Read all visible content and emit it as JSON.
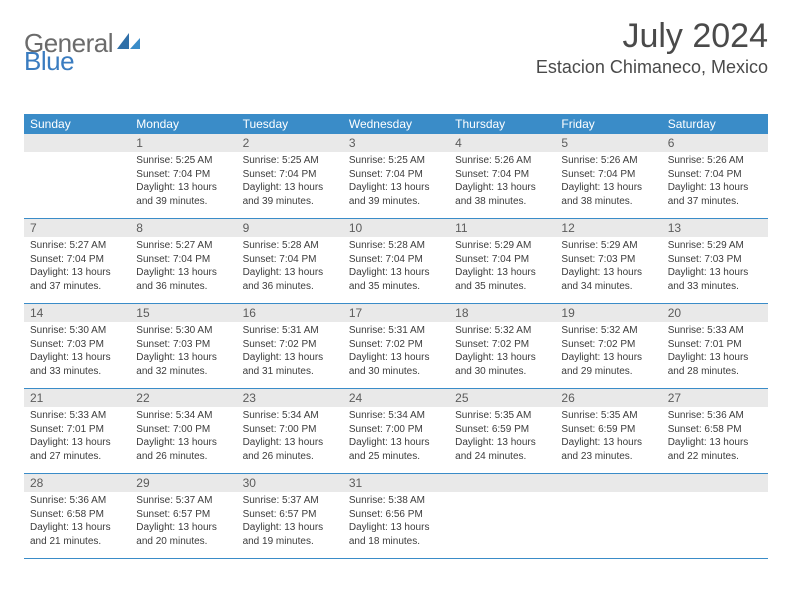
{
  "logo": {
    "part1": "General",
    "part2": "Blue"
  },
  "title": "July 2024",
  "location": "Estacion Chimaneco, Mexico",
  "colors": {
    "header_bg": "#3a8cc8",
    "header_text": "#ffffff",
    "daynum_bg": "#e9e9e9",
    "daynum_text": "#5c5c5c",
    "body_text": "#3c3c3c",
    "rule": "#3a8cc8",
    "title_text": "#4a4a4a",
    "logo_gray": "#6b6b6b",
    "logo_blue": "#3a7cc0"
  },
  "typography": {
    "title_fontsize": 34,
    "location_fontsize": 18,
    "weekday_fontsize": 12,
    "daynum_fontsize": 12,
    "body_fontsize": 10
  },
  "weekdays": [
    "Sunday",
    "Monday",
    "Tuesday",
    "Wednesday",
    "Thursday",
    "Friday",
    "Saturday"
  ],
  "weeks": [
    [
      {
        "n": "",
        "sunrise": "",
        "sunset": "",
        "daylight1": "",
        "daylight2": ""
      },
      {
        "n": "1",
        "sunrise": "Sunrise: 5:25 AM",
        "sunset": "Sunset: 7:04 PM",
        "daylight1": "Daylight: 13 hours",
        "daylight2": "and 39 minutes."
      },
      {
        "n": "2",
        "sunrise": "Sunrise: 5:25 AM",
        "sunset": "Sunset: 7:04 PM",
        "daylight1": "Daylight: 13 hours",
        "daylight2": "and 39 minutes."
      },
      {
        "n": "3",
        "sunrise": "Sunrise: 5:25 AM",
        "sunset": "Sunset: 7:04 PM",
        "daylight1": "Daylight: 13 hours",
        "daylight2": "and 39 minutes."
      },
      {
        "n": "4",
        "sunrise": "Sunrise: 5:26 AM",
        "sunset": "Sunset: 7:04 PM",
        "daylight1": "Daylight: 13 hours",
        "daylight2": "and 38 minutes."
      },
      {
        "n": "5",
        "sunrise": "Sunrise: 5:26 AM",
        "sunset": "Sunset: 7:04 PM",
        "daylight1": "Daylight: 13 hours",
        "daylight2": "and 38 minutes."
      },
      {
        "n": "6",
        "sunrise": "Sunrise: 5:26 AM",
        "sunset": "Sunset: 7:04 PM",
        "daylight1": "Daylight: 13 hours",
        "daylight2": "and 37 minutes."
      }
    ],
    [
      {
        "n": "7",
        "sunrise": "Sunrise: 5:27 AM",
        "sunset": "Sunset: 7:04 PM",
        "daylight1": "Daylight: 13 hours",
        "daylight2": "and 37 minutes."
      },
      {
        "n": "8",
        "sunrise": "Sunrise: 5:27 AM",
        "sunset": "Sunset: 7:04 PM",
        "daylight1": "Daylight: 13 hours",
        "daylight2": "and 36 minutes."
      },
      {
        "n": "9",
        "sunrise": "Sunrise: 5:28 AM",
        "sunset": "Sunset: 7:04 PM",
        "daylight1": "Daylight: 13 hours",
        "daylight2": "and 36 minutes."
      },
      {
        "n": "10",
        "sunrise": "Sunrise: 5:28 AM",
        "sunset": "Sunset: 7:04 PM",
        "daylight1": "Daylight: 13 hours",
        "daylight2": "and 35 minutes."
      },
      {
        "n": "11",
        "sunrise": "Sunrise: 5:29 AM",
        "sunset": "Sunset: 7:04 PM",
        "daylight1": "Daylight: 13 hours",
        "daylight2": "and 35 minutes."
      },
      {
        "n": "12",
        "sunrise": "Sunrise: 5:29 AM",
        "sunset": "Sunset: 7:03 PM",
        "daylight1": "Daylight: 13 hours",
        "daylight2": "and 34 minutes."
      },
      {
        "n": "13",
        "sunrise": "Sunrise: 5:29 AM",
        "sunset": "Sunset: 7:03 PM",
        "daylight1": "Daylight: 13 hours",
        "daylight2": "and 33 minutes."
      }
    ],
    [
      {
        "n": "14",
        "sunrise": "Sunrise: 5:30 AM",
        "sunset": "Sunset: 7:03 PM",
        "daylight1": "Daylight: 13 hours",
        "daylight2": "and 33 minutes."
      },
      {
        "n": "15",
        "sunrise": "Sunrise: 5:30 AM",
        "sunset": "Sunset: 7:03 PM",
        "daylight1": "Daylight: 13 hours",
        "daylight2": "and 32 minutes."
      },
      {
        "n": "16",
        "sunrise": "Sunrise: 5:31 AM",
        "sunset": "Sunset: 7:02 PM",
        "daylight1": "Daylight: 13 hours",
        "daylight2": "and 31 minutes."
      },
      {
        "n": "17",
        "sunrise": "Sunrise: 5:31 AM",
        "sunset": "Sunset: 7:02 PM",
        "daylight1": "Daylight: 13 hours",
        "daylight2": "and 30 minutes."
      },
      {
        "n": "18",
        "sunrise": "Sunrise: 5:32 AM",
        "sunset": "Sunset: 7:02 PM",
        "daylight1": "Daylight: 13 hours",
        "daylight2": "and 30 minutes."
      },
      {
        "n": "19",
        "sunrise": "Sunrise: 5:32 AM",
        "sunset": "Sunset: 7:02 PM",
        "daylight1": "Daylight: 13 hours",
        "daylight2": "and 29 minutes."
      },
      {
        "n": "20",
        "sunrise": "Sunrise: 5:33 AM",
        "sunset": "Sunset: 7:01 PM",
        "daylight1": "Daylight: 13 hours",
        "daylight2": "and 28 minutes."
      }
    ],
    [
      {
        "n": "21",
        "sunrise": "Sunrise: 5:33 AM",
        "sunset": "Sunset: 7:01 PM",
        "daylight1": "Daylight: 13 hours",
        "daylight2": "and 27 minutes."
      },
      {
        "n": "22",
        "sunrise": "Sunrise: 5:34 AM",
        "sunset": "Sunset: 7:00 PM",
        "daylight1": "Daylight: 13 hours",
        "daylight2": "and 26 minutes."
      },
      {
        "n": "23",
        "sunrise": "Sunrise: 5:34 AM",
        "sunset": "Sunset: 7:00 PM",
        "daylight1": "Daylight: 13 hours",
        "daylight2": "and 26 minutes."
      },
      {
        "n": "24",
        "sunrise": "Sunrise: 5:34 AM",
        "sunset": "Sunset: 7:00 PM",
        "daylight1": "Daylight: 13 hours",
        "daylight2": "and 25 minutes."
      },
      {
        "n": "25",
        "sunrise": "Sunrise: 5:35 AM",
        "sunset": "Sunset: 6:59 PM",
        "daylight1": "Daylight: 13 hours",
        "daylight2": "and 24 minutes."
      },
      {
        "n": "26",
        "sunrise": "Sunrise: 5:35 AM",
        "sunset": "Sunset: 6:59 PM",
        "daylight1": "Daylight: 13 hours",
        "daylight2": "and 23 minutes."
      },
      {
        "n": "27",
        "sunrise": "Sunrise: 5:36 AM",
        "sunset": "Sunset: 6:58 PM",
        "daylight1": "Daylight: 13 hours",
        "daylight2": "and 22 minutes."
      }
    ],
    [
      {
        "n": "28",
        "sunrise": "Sunrise: 5:36 AM",
        "sunset": "Sunset: 6:58 PM",
        "daylight1": "Daylight: 13 hours",
        "daylight2": "and 21 minutes."
      },
      {
        "n": "29",
        "sunrise": "Sunrise: 5:37 AM",
        "sunset": "Sunset: 6:57 PM",
        "daylight1": "Daylight: 13 hours",
        "daylight2": "and 20 minutes."
      },
      {
        "n": "30",
        "sunrise": "Sunrise: 5:37 AM",
        "sunset": "Sunset: 6:57 PM",
        "daylight1": "Daylight: 13 hours",
        "daylight2": "and 19 minutes."
      },
      {
        "n": "31",
        "sunrise": "Sunrise: 5:38 AM",
        "sunset": "Sunset: 6:56 PM",
        "daylight1": "Daylight: 13 hours",
        "daylight2": "and 18 minutes."
      },
      {
        "n": "",
        "sunrise": "",
        "sunset": "",
        "daylight1": "",
        "daylight2": ""
      },
      {
        "n": "",
        "sunrise": "",
        "sunset": "",
        "daylight1": "",
        "daylight2": ""
      },
      {
        "n": "",
        "sunrise": "",
        "sunset": "",
        "daylight1": "",
        "daylight2": ""
      }
    ]
  ]
}
